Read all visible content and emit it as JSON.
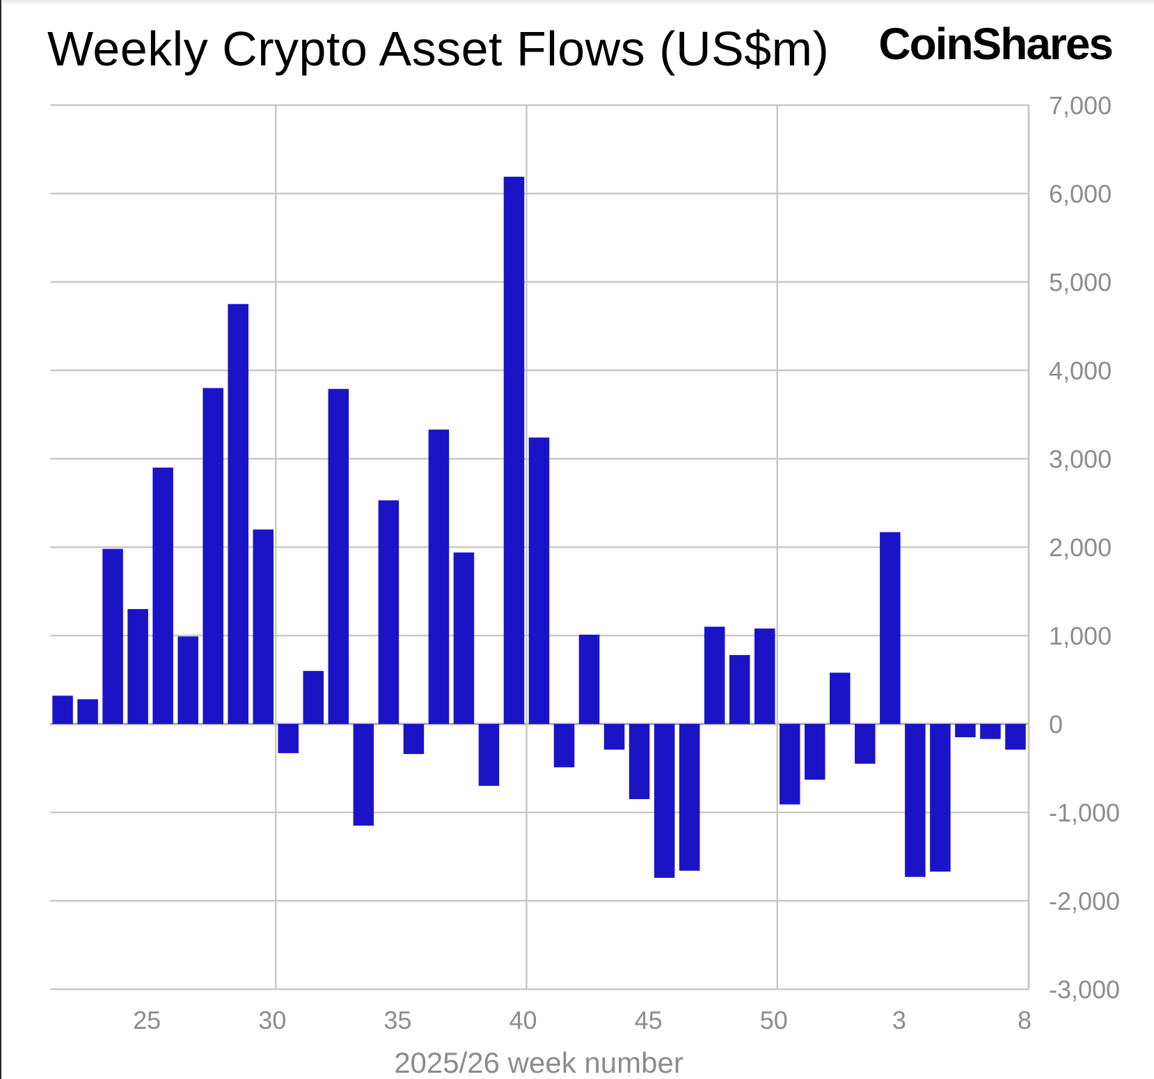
{
  "header": {
    "title": "Weekly Crypto Asset Flows (US$m)",
    "brand": "CoinShares"
  },
  "colors": {
    "bar": "#1B14C6",
    "grid": "#c8c8c8",
    "tick_text": "#8c8c8c",
    "zero_line": "#a8a8a8"
  },
  "chart_data": {
    "type": "bar",
    "title": "Weekly Crypto Asset Flows (US$m)",
    "xlabel": "2025/26 week number",
    "ylabel": "",
    "ylim": [
      -3000,
      7000
    ],
    "yticks": [
      7000,
      6000,
      5000,
      4000,
      3000,
      2000,
      1000,
      0,
      -1000,
      -2000,
      -3000
    ],
    "ytick_labels": [
      "7,000",
      "6,000",
      "5,000",
      "4,000",
      "3,000",
      "2,000",
      "1,000",
      "0",
      "-1,000",
      "-2,000",
      "-3,000"
    ],
    "y_axis_side": "right",
    "grid": true,
    "categories": [
      "22",
      "23",
      "24",
      "25",
      "26",
      "27",
      "28",
      "29",
      "30",
      "31",
      "32",
      "33",
      "34",
      "35",
      "36",
      "37",
      "38",
      "39",
      "40",
      "41",
      "42",
      "43",
      "44",
      "45",
      "46",
      "47",
      "48",
      "49",
      "50",
      "51",
      "52",
      "1",
      "2",
      "3",
      "4",
      "5",
      "6",
      "7",
      "8"
    ],
    "values": [
      320,
      280,
      1980,
      1300,
      2900,
      990,
      3800,
      4750,
      2200,
      -330,
      600,
      3790,
      -1150,
      2530,
      -340,
      3330,
      1940,
      -700,
      6190,
      3240,
      -490,
      1010,
      -290,
      -850,
      -1740,
      -1660,
      1100,
      780,
      1080,
      -910,
      -630,
      580,
      -450,
      2170,
      -1730,
      -1670,
      -150,
      -170,
      -290
    ],
    "xtick_labels": [
      "25",
      "30",
      "35",
      "40",
      "45",
      "50",
      "3",
      "8"
    ],
    "xtick_category_index": [
      3,
      8,
      13,
      18,
      23,
      28,
      33,
      38
    ],
    "vertical_grid_category_index": [
      8,
      18,
      28
    ]
  }
}
